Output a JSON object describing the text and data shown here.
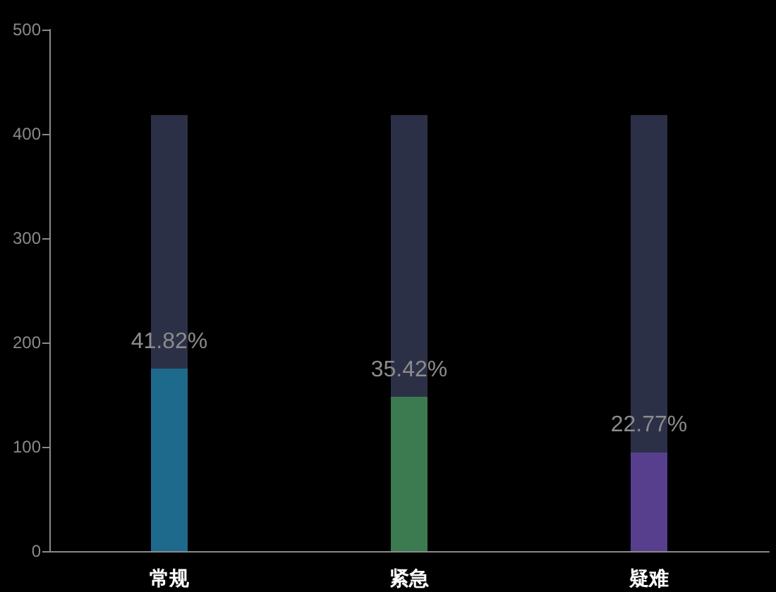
{
  "chart_data": {
    "type": "bar",
    "categories": [
      "常规",
      "紧急",
      "疑难"
    ],
    "stacked": true,
    "series": [
      {
        "colors": [
          "#1e6a8c",
          "#3c7a50",
          "#583f8e"
        ],
        "values": [
          175,
          148,
          95
        ]
      },
      {
        "color": "#2c3047",
        "values": [
          243,
          270,
          323
        ]
      }
    ],
    "ylim": [
      0,
      500
    ],
    "yticks": [
      0,
      100,
      200,
      300,
      400,
      500
    ],
    "annotations": [
      {
        "text": "41.82%",
        "x": "常规",
        "y": 175
      },
      {
        "text": "35.42%",
        "x": "紧急",
        "y": 148
      },
      {
        "text": "22.77%",
        "x": "疑难",
        "y": 95
      }
    ]
  }
}
